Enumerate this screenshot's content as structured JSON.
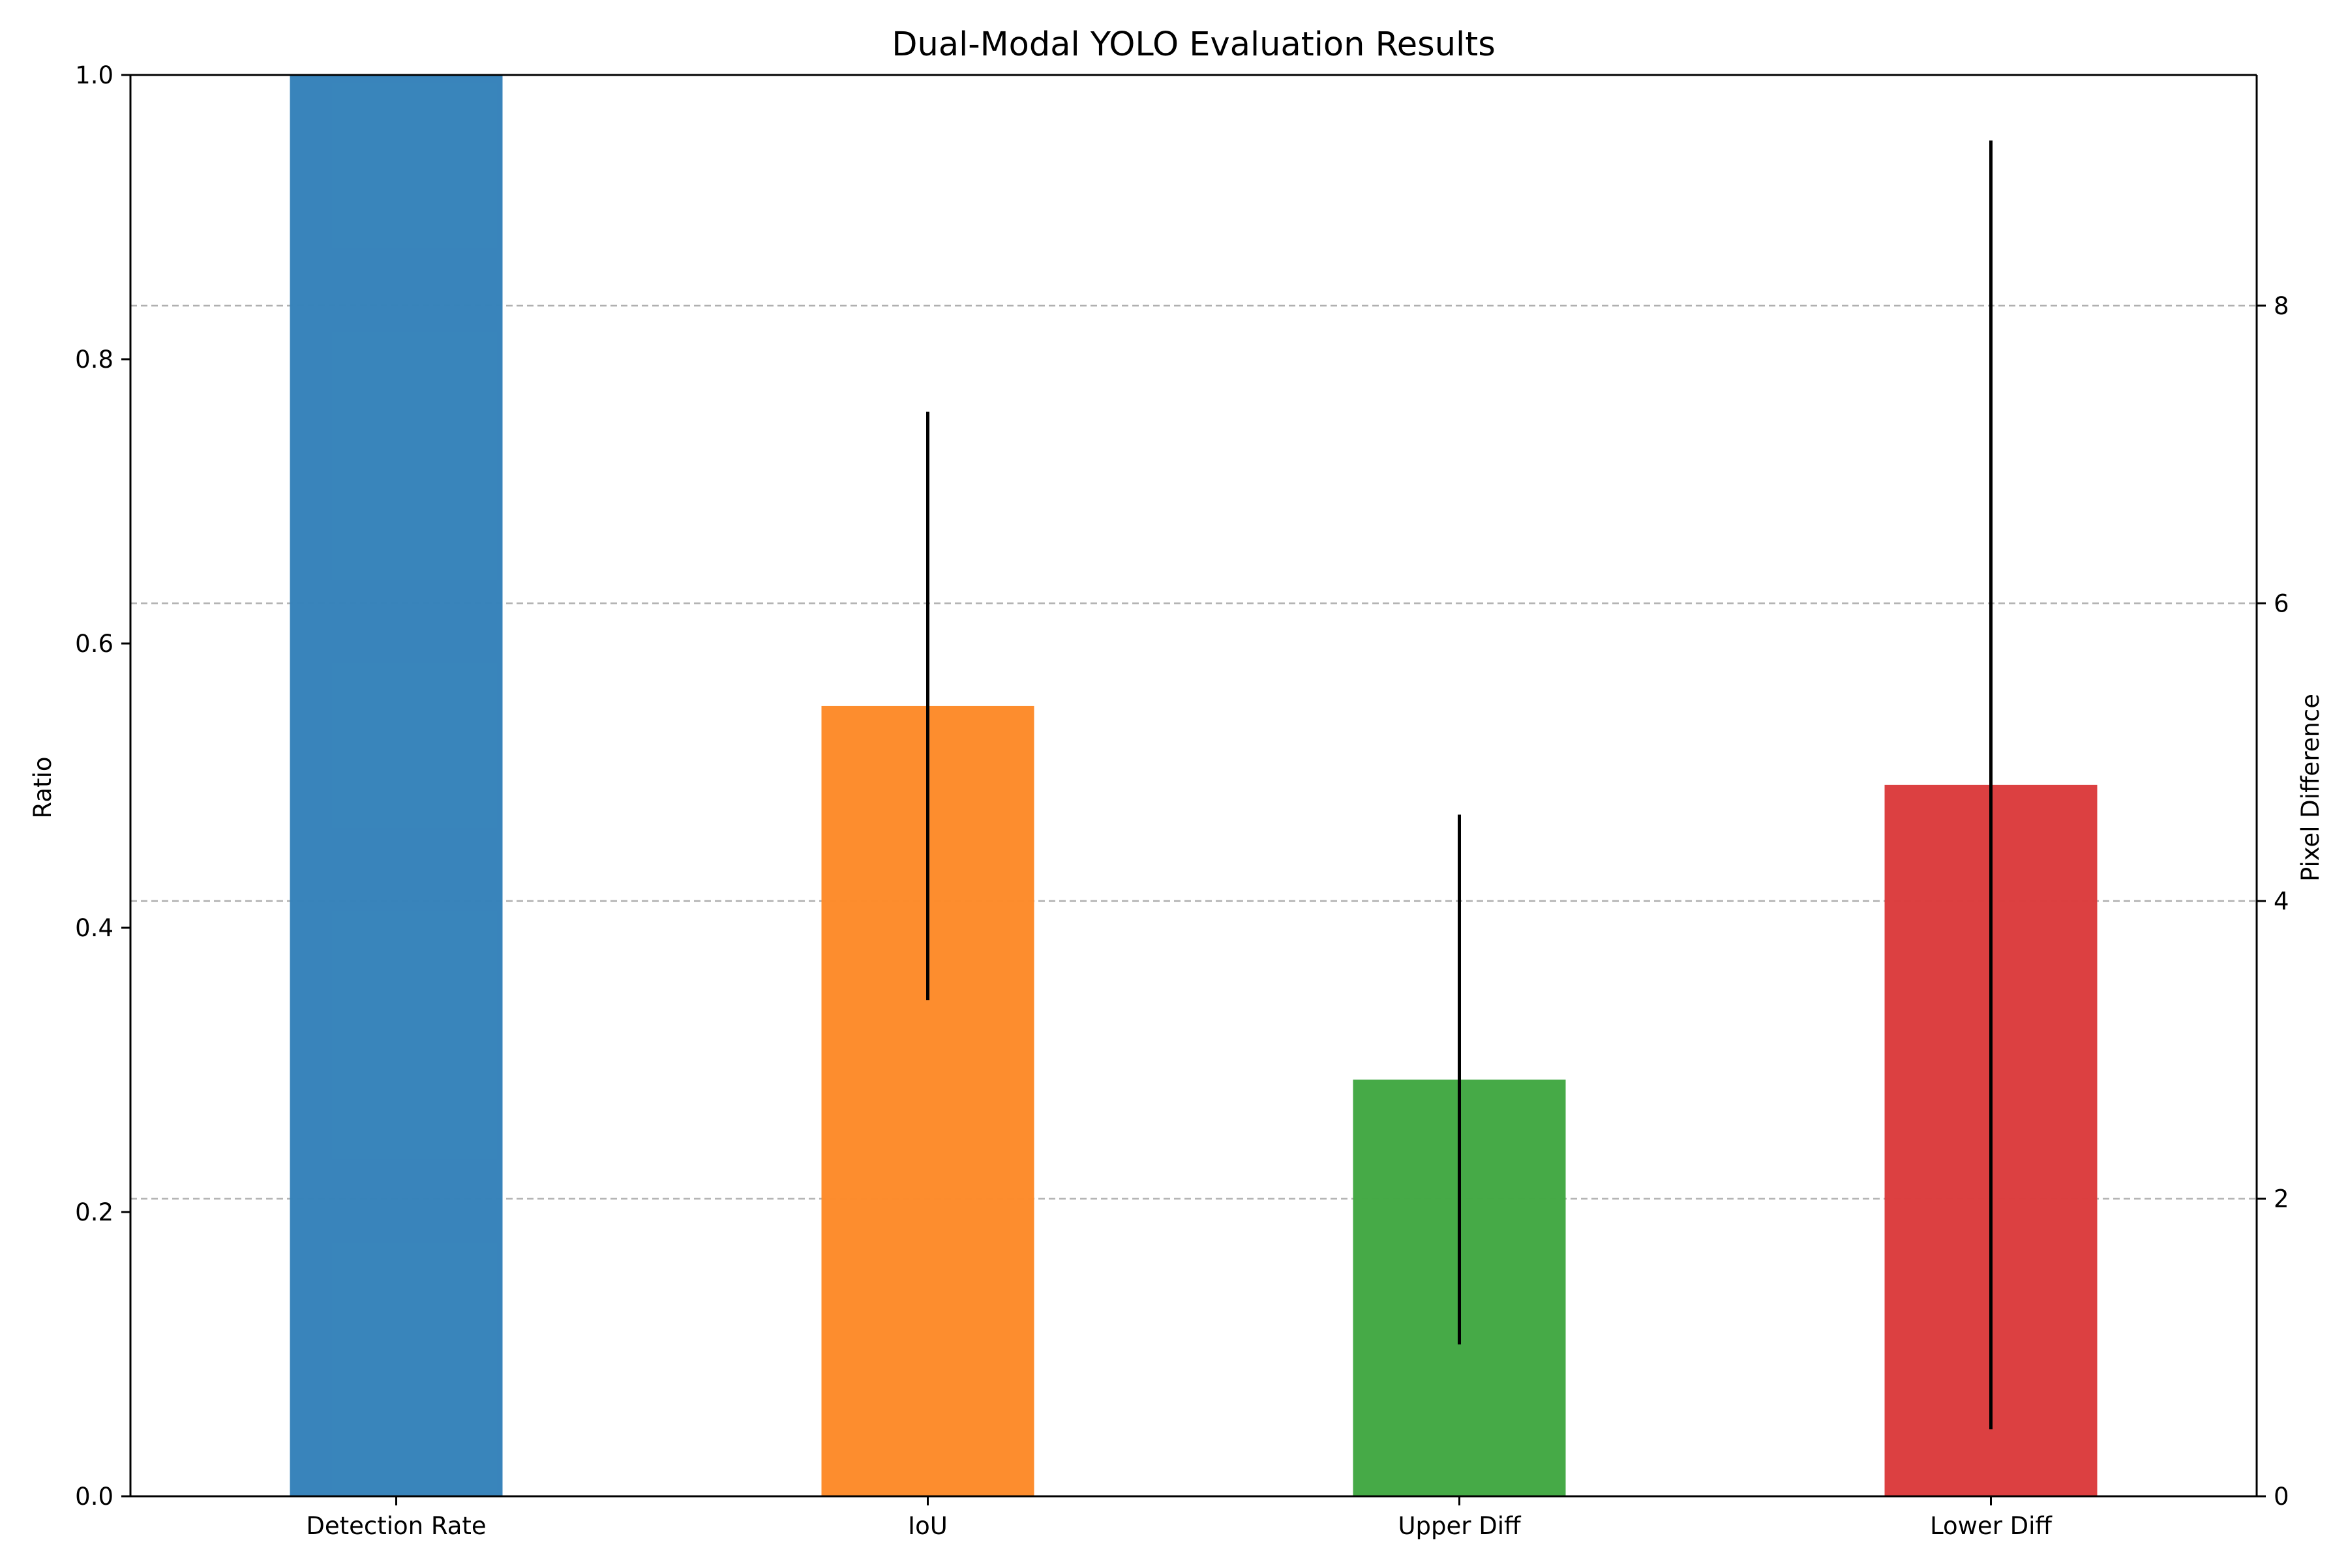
{
  "chart_data": {
    "type": "bar",
    "title": "Dual-Modal YOLO Evaluation Results",
    "categories": [
      "Detection Rate",
      "IoU",
      "Upper Diff",
      "Lower Diff"
    ],
    "left_axis": {
      "label": "Ratio",
      "ylim": [
        0,
        1.0
      ],
      "ticks": [
        0.0,
        0.2,
        0.4,
        0.6,
        0.8,
        1.0
      ],
      "tick_labels": [
        "0.0",
        "0.2",
        "0.4",
        "0.6",
        "0.8",
        "1.0"
      ]
    },
    "right_axis": {
      "label": "Pixel Difference",
      "ylim": [
        0,
        9.55
      ],
      "ticks": [
        0,
        2,
        4,
        6,
        8
      ],
      "tick_labels": [
        "0",
        "2",
        "4",
        "6",
        "8"
      ]
    },
    "grid": "horizontal dashed lines at right-axis ticks",
    "bars": [
      {
        "category": "Detection Rate",
        "axis": "left",
        "value": 1.0,
        "color": "#3582ba"
      },
      {
        "category": "IoU",
        "axis": "left",
        "value": 0.556,
        "error_low": 0.349,
        "error_high": 0.763,
        "color": "#fd8b2a"
      },
      {
        "category": "Upper Diff",
        "axis": "right",
        "value": 2.8,
        "error_low": 1.02,
        "error_high": 4.58,
        "color": "#42a843"
      },
      {
        "category": "Lower Diff",
        "axis": "right",
        "value": 4.78,
        "error_low": 0.45,
        "error_high": 9.11,
        "color": "#db3c3d"
      }
    ]
  }
}
